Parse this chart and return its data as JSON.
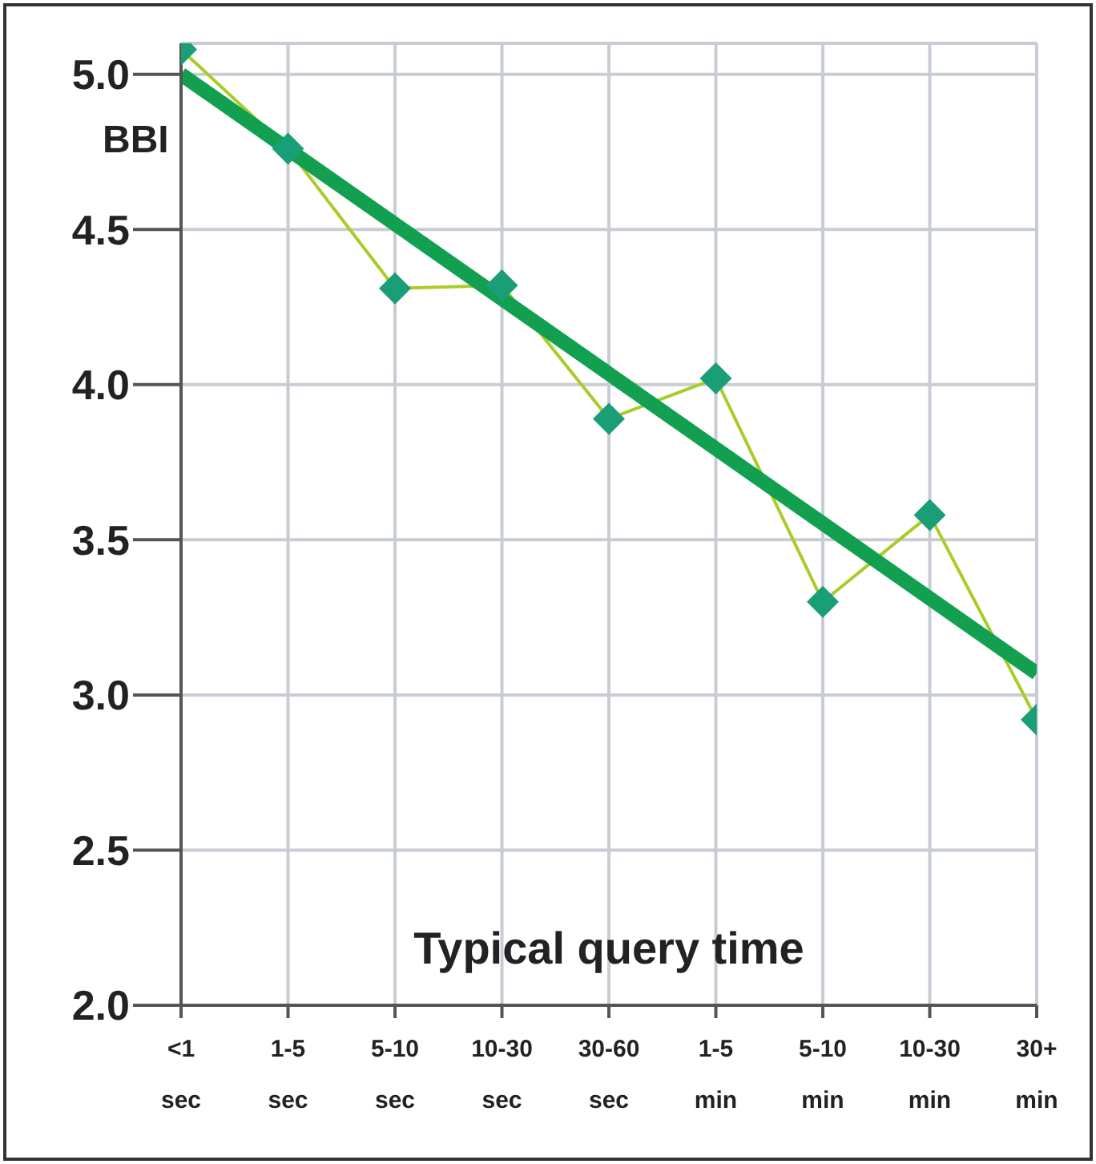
{
  "chart_data": {
    "type": "line",
    "xlabel": "Typical query time",
    "ylabel": "BBI",
    "categories": [
      "<1 sec",
      "1-5 sec",
      "5-10 sec",
      "10-30 sec",
      "30-60 sec",
      "1-5 min",
      "5-10 min",
      "10-30 min",
      "30+ min"
    ],
    "series": [
      {
        "color": "#1a9e78",
        "values": [
          5.08,
          4.76,
          4.31,
          4.32,
          3.89,
          4.02,
          3.3,
          3.58,
          2.92
        ],
        "marker": "diamond"
      },
      {
        "type": "line",
        "color": "#12a050",
        "x": [
          "<1 sec",
          "30+ min"
        ],
        "values": [
          5.0,
          3.07
        ],
        "marker": "none"
      }
    ],
    "ylim": [
      2.0,
      5.1
    ],
    "yticks": [
      {
        "value": 2.0,
        "label": "2.0"
      },
      {
        "value": 2.5,
        "label": "2.5"
      },
      {
        "value": 3.0,
        "label": "3.0"
      },
      {
        "value": 3.5,
        "label": "3.5"
      },
      {
        "value": 4.0,
        "label": "4.0"
      },
      {
        "value": 4.5,
        "label": "4.5"
      },
      {
        "value": 5.0,
        "label": "5.0"
      }
    ],
    "grid": true,
    "legend": false
  }
}
